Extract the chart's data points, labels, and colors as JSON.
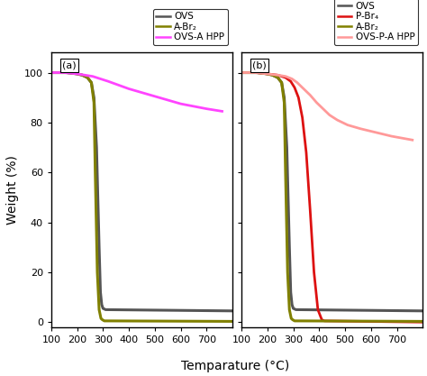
{
  "title_a": "(a)",
  "title_b": "(b)",
  "xlabel": "Temparature (°C)",
  "ylabel": "Weight (%)",
  "xlim": [
    100,
    800
  ],
  "ylim": [
    -2,
    108
  ],
  "xticks": [
    100,
    200,
    300,
    400,
    500,
    600,
    700
  ],
  "yticks": [
    0,
    20,
    40,
    60,
    80,
    100
  ],
  "panel_a": {
    "legend_labels": [
      "OVS",
      "A-Br₂",
      "OVS-A HPP"
    ],
    "legend_colors": [
      "#555555",
      "#808000",
      "#ff44ff"
    ],
    "curves": {
      "OVS": {
        "color": "#555555",
        "lw": 2.2,
        "x": [
          100,
          160,
          200,
          220,
          240,
          255,
          265,
          275,
          285,
          290,
          295,
          300,
          310,
          800
        ],
        "y": [
          100,
          100,
          99.5,
          99,
          98,
          96,
          90,
          70,
          30,
          12,
          7,
          5.5,
          5,
          4.5
        ]
      },
      "A-Br2": {
        "color": "#808000",
        "lw": 2.2,
        "x": [
          100,
          160,
          200,
          220,
          240,
          255,
          265,
          270,
          278,
          285,
          292,
          297,
          305,
          800
        ],
        "y": [
          100,
          100,
          99.5,
          99,
          98,
          96,
          88,
          60,
          20,
          5,
          1.5,
          1,
          0.5,
          0.3
        ]
      },
      "OVS_A_HPP": {
        "color": "#ff44ff",
        "lw": 2.0,
        "x": [
          100,
          150,
          200,
          230,
          260,
          290,
          320,
          360,
          400,
          450,
          500,
          550,
          600,
          650,
          700,
          760
        ],
        "y": [
          100,
          100,
          99.5,
          99,
          98.5,
          97.5,
          96.5,
          95,
          93.5,
          92,
          90.5,
          89,
          87.5,
          86.5,
          85.5,
          84.5
        ]
      }
    }
  },
  "panel_b": {
    "legend_labels": [
      "OVS",
      "P-Br₄",
      "A-Br₂",
      "OVS-P-A HPP"
    ],
    "legend_colors": [
      "#555555",
      "#dd1111",
      "#808000",
      "#ff9999"
    ],
    "curves": {
      "OVS": {
        "color": "#555555",
        "lw": 2.2,
        "x": [
          100,
          160,
          200,
          220,
          240,
          255,
          265,
          275,
          285,
          290,
          295,
          300,
          310,
          800
        ],
        "y": [
          100,
          100,
          99.5,
          99,
          98,
          96,
          90,
          70,
          30,
          12,
          7,
          5.5,
          5,
          4.5
        ]
      },
      "P-Br4": {
        "color": "#dd1111",
        "lw": 2.0,
        "x": [
          100,
          160,
          200,
          240,
          270,
          290,
          305,
          320,
          335,
          350,
          365,
          380,
          395,
          410,
          420,
          800
        ],
        "y": [
          100,
          100,
          99.5,
          99,
          98,
          96.5,
          94,
          90,
          82,
          68,
          45,
          20,
          5,
          1,
          0.5,
          0
        ]
      },
      "A-Br2": {
        "color": "#808000",
        "lw": 2.2,
        "x": [
          100,
          160,
          200,
          220,
          240,
          255,
          265,
          270,
          278,
          285,
          292,
          297,
          305,
          800
        ],
        "y": [
          100,
          100,
          99.5,
          99,
          98,
          96,
          88,
          60,
          20,
          5,
          1.5,
          1,
          0.5,
          0.3
        ]
      },
      "OVS_P_A_HPP": {
        "color": "#ff9999",
        "lw": 2.0,
        "x": [
          100,
          150,
          200,
          240,
          270,
          295,
          315,
          340,
          365,
          390,
          415,
          440,
          470,
          510,
          560,
          620,
          680,
          760
        ],
        "y": [
          100,
          100,
          99.5,
          99,
          98.5,
          97.5,
          96,
          93.5,
          91,
          88,
          85.5,
          83,
          81,
          79,
          77.5,
          76,
          74.5,
          73
        ]
      }
    }
  },
  "background_color": "#ffffff",
  "tick_fontsize": 8,
  "label_fontsize": 10,
  "legend_fontsize": 7.5
}
